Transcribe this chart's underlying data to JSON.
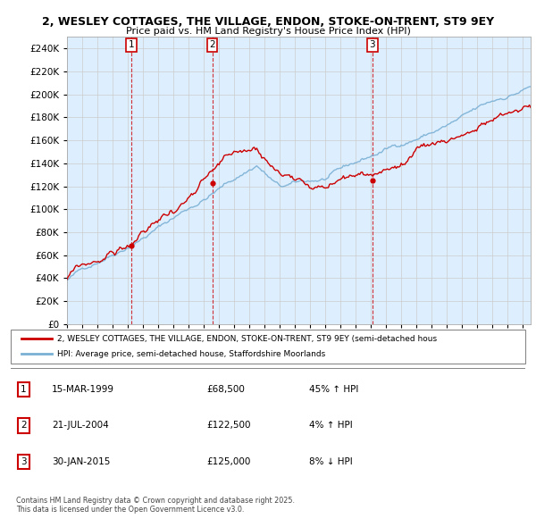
{
  "title_line1": "2, WESLEY COTTAGES, THE VILLAGE, ENDON, STOKE-ON-TRENT, ST9 9EY",
  "title_line2": "Price paid vs. HM Land Registry's House Price Index (HPI)",
  "legend_line1": "2, WESLEY COTTAGES, THE VILLAGE, ENDON, STOKE-ON-TRENT, ST9 9EY (semi-detached hous’",
  "legend_line2": "HPI: Average price, semi-detached house, Staffordshire Moorlands",
  "footer_line1": "Contains HM Land Registry data © Crown copyright and database right 2025.",
  "footer_line2": "This data is licensed under the Open Government Licence v3.0.",
  "transactions": [
    {
      "num": 1,
      "date": "15-MAR-1999",
      "price": 68500,
      "pct": "45%",
      "dir": "↑"
    },
    {
      "num": 2,
      "date": "21-JUL-2004",
      "price": 122500,
      "pct": "4%",
      "dir": "↑"
    },
    {
      "num": 3,
      "date": "30-JAN-2015",
      "price": 125000,
      "pct": "8%",
      "dir": "↓"
    }
  ],
  "transaction_years": [
    1999.21,
    2004.55,
    2015.08
  ],
  "transaction_prices": [
    68500,
    122500,
    125000
  ],
  "ylim": [
    0,
    250000
  ],
  "yticks": [
    0,
    20000,
    40000,
    60000,
    80000,
    100000,
    120000,
    140000,
    160000,
    180000,
    200000,
    220000,
    240000
  ],
  "red_color": "#cc0000",
  "blue_color": "#7ab0d4",
  "blue_fill": "#ddeeff",
  "background_color": "#ffffff",
  "grid_color": "#cccccc"
}
